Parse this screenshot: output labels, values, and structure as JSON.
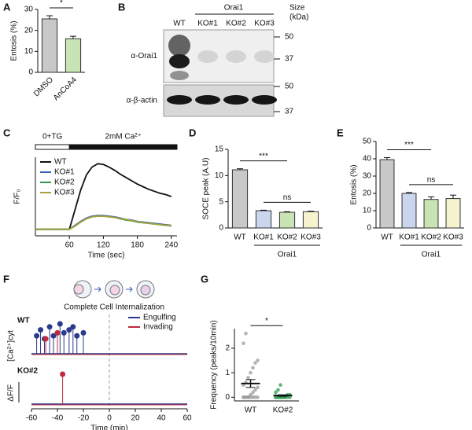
{
  "blot": {
    "label": "B",
    "group": "Orai1",
    "size_label": [
      "Size",
      "(kDa)"
    ],
    "lanes": [
      "WT",
      "KO#1",
      "KO#2",
      "KO#3"
    ],
    "rows": [
      {
        "label": "α-Orai1",
        "markers": [
          50,
          37
        ]
      },
      {
        "label": "α-β-actin",
        "markers": [
          50,
          37
        ]
      }
    ]
  },
  "schematic": {
    "title": "Complete Cell Internalization"
  },
  "chart_data": [
    {
      "type": "bar",
      "label": "A",
      "ylabel": "Entosis (%)",
      "categories": [
        "DMSO",
        "AnCoA4"
      ],
      "values": [
        25.5,
        16
      ],
      "errors": [
        1.5,
        1.2
      ],
      "colors": [
        "#c8c8c8",
        "#c9e4b4"
      ],
      "ylim": [
        0,
        30
      ],
      "yticks": [
        0,
        10,
        20,
        30
      ],
      "annotations": [
        {
          "text": "*",
          "from": 0,
          "to": 1
        }
      ]
    },
    {
      "type": "line",
      "label": "C",
      "xlabel": "Time (sec)",
      "ylabel": "F/F₀",
      "xlim": [
        0,
        250
      ],
      "xticks": [
        60,
        120,
        180,
        240
      ],
      "ylim": [
        0,
        12
      ],
      "phases": [
        {
          "label": "0+TG",
          "from": 0,
          "to": 60,
          "color": "#ffffff"
        },
        {
          "label": "2mM Ca²⁺",
          "from": 60,
          "to": 250,
          "color": "#111111"
        }
      ],
      "x": [
        0,
        10,
        20,
        30,
        40,
        50,
        60,
        70,
        80,
        90,
        100,
        110,
        120,
        130,
        140,
        150,
        160,
        170,
        180,
        190,
        200,
        210,
        220,
        230,
        240
      ],
      "series": [
        {
          "name": "WT",
          "color": "#111111",
          "values": [
            1,
            1,
            1,
            1,
            1,
            1,
            1,
            4,
            7,
            9.3,
            10.5,
            11,
            10.9,
            10.5,
            10,
            9.4,
            8.9,
            8.4,
            7.9,
            7.5,
            7.1,
            6.8,
            6.5,
            6.3,
            6
          ]
        },
        {
          "name": "KO#1",
          "color": "#3a5fb0",
          "values": [
            1,
            1,
            1,
            1,
            1,
            1,
            1,
            1.6,
            2.2,
            2.7,
            3,
            3.1,
            3.1,
            3,
            2.9,
            2.7,
            2.5,
            2.4,
            2.2,
            2.1,
            2,
            1.9,
            1.8,
            1.7,
            1.6
          ]
        },
        {
          "name": "KO#2",
          "color": "#2e9a4a",
          "values": [
            1,
            1,
            1,
            1,
            1,
            1,
            1,
            1.5,
            2.1,
            2.6,
            2.9,
            3,
            3,
            2.9,
            2.8,
            2.6,
            2.4,
            2.3,
            2.1,
            2,
            1.9,
            1.8,
            1.7,
            1.6,
            1.5
          ]
        },
        {
          "name": "KO#3",
          "color": "#a7a23a",
          "values": [
            1,
            1,
            1,
            1,
            1,
            1,
            1,
            1.5,
            2.1,
            2.6,
            2.9,
            3,
            3,
            2.9,
            2.8,
            2.6,
            2.5,
            2.3,
            2.2,
            2,
            1.9,
            1.8,
            1.7,
            1.6,
            1.6
          ]
        }
      ]
    },
    {
      "type": "bar",
      "label": "D",
      "ylabel": "SOCE peak (A.U)",
      "categories": [
        "WT",
        "KO#1",
        "KO#2",
        "KO#3"
      ],
      "values": [
        11.1,
        3.3,
        3,
        3.1
      ],
      "errors": [
        0.2,
        0.1,
        0.1,
        0.1
      ],
      "colors": [
        "#c8c8c8",
        "#c9d6ee",
        "#c9e4b4",
        "#f7f3cf"
      ],
      "ylim": [
        0,
        15
      ],
      "yticks": [
        0,
        5,
        10,
        15
      ],
      "annotations": [
        {
          "text": "***",
          "from": 0,
          "to": 2
        },
        {
          "text": "ns",
          "from": 1,
          "to": 3
        }
      ],
      "group": {
        "label": "Orai1",
        "from": 1,
        "to": 3
      }
    },
    {
      "type": "bar",
      "label": "E",
      "ylabel": "Entosis (%)",
      "categories": [
        "WT",
        "KO#1",
        "KO#2",
        "KO#3"
      ],
      "values": [
        39.5,
        20,
        16.5,
        17
      ],
      "errors": [
        1.2,
        0.5,
        1.5,
        2
      ],
      "colors": [
        "#c8c8c8",
        "#c9d6ee",
        "#c9e4b4",
        "#f7f3cf"
      ],
      "ylim": [
        0,
        50
      ],
      "yticks": [
        0,
        10,
        20,
        30,
        40,
        50
      ],
      "annotations": [
        {
          "text": "***",
          "from": 0,
          "to": 2
        },
        {
          "text": "ns",
          "from": 1,
          "to": 3
        }
      ],
      "group": {
        "label": "Orai1",
        "from": 1,
        "to": 3
      }
    },
    {
      "type": "events",
      "label": "F",
      "xlabel": "Time (min)",
      "xlim": [
        -60,
        60
      ],
      "xticks": [
        -60,
        -40,
        -20,
        0,
        20,
        40,
        60
      ],
      "ylim": [
        0,
        1
      ],
      "scale_labels": [
        "[Ca²⁺]cyt",
        "ΔF/F"
      ],
      "legend": [
        {
          "name": "Engulfing",
          "color": "#2b3a8c"
        },
        {
          "name": "Invading",
          "color": "#c0283c"
        }
      ],
      "rows": [
        {
          "label": "WT",
          "series": [
            {
              "x": [
                -56,
                -53,
                -50,
                -46,
                -43,
                -38,
                -35,
                -31,
                -28,
                -25,
                -20
              ],
              "values": [
                0.6,
                0.8,
                0.5,
                0.9,
                0.6,
                1,
                0.7,
                0.8,
                0.9,
                0.6,
                0.7
              ]
            },
            {
              "x": [
                -49,
                -40
              ],
              "values": [
                0.5,
                0.7
              ]
            }
          ]
        },
        {
          "label": "KO#2",
          "series": [
            {
              "x": [],
              "values": []
            },
            {
              "x": [
                -36
              ],
              "values": [
                1
              ]
            }
          ]
        }
      ]
    },
    {
      "type": "dot",
      "label": "G",
      "ylabel": "Frequency (peaks/10min)",
      "categories": [
        "WT",
        "KO#2"
      ],
      "colors": [
        "#9a9a9a",
        "#2e9a4a"
      ],
      "ylim": [
        -0.15,
        2.8
      ],
      "yticks": [
        0,
        1,
        2
      ],
      "points": [
        [
          0,
          0,
          0,
          0,
          0,
          0,
          0,
          0,
          0,
          0,
          0.1,
          0.2,
          0.3,
          0.4,
          0.5,
          0.6,
          0.8,
          1,
          1.2,
          1.4,
          1.5,
          2.2,
          2.6
        ],
        [
          0,
          0,
          0,
          0,
          0,
          0,
          0,
          0,
          0,
          0,
          0,
          0,
          0.1,
          0.1,
          0.2,
          0.3,
          0.5
        ]
      ],
      "means": [
        0.56,
        0.07
      ],
      "sems": [
        0.16,
        0.03
      ],
      "annotations": [
        {
          "text": "*",
          "from": 0,
          "to": 1
        }
      ]
    }
  ]
}
